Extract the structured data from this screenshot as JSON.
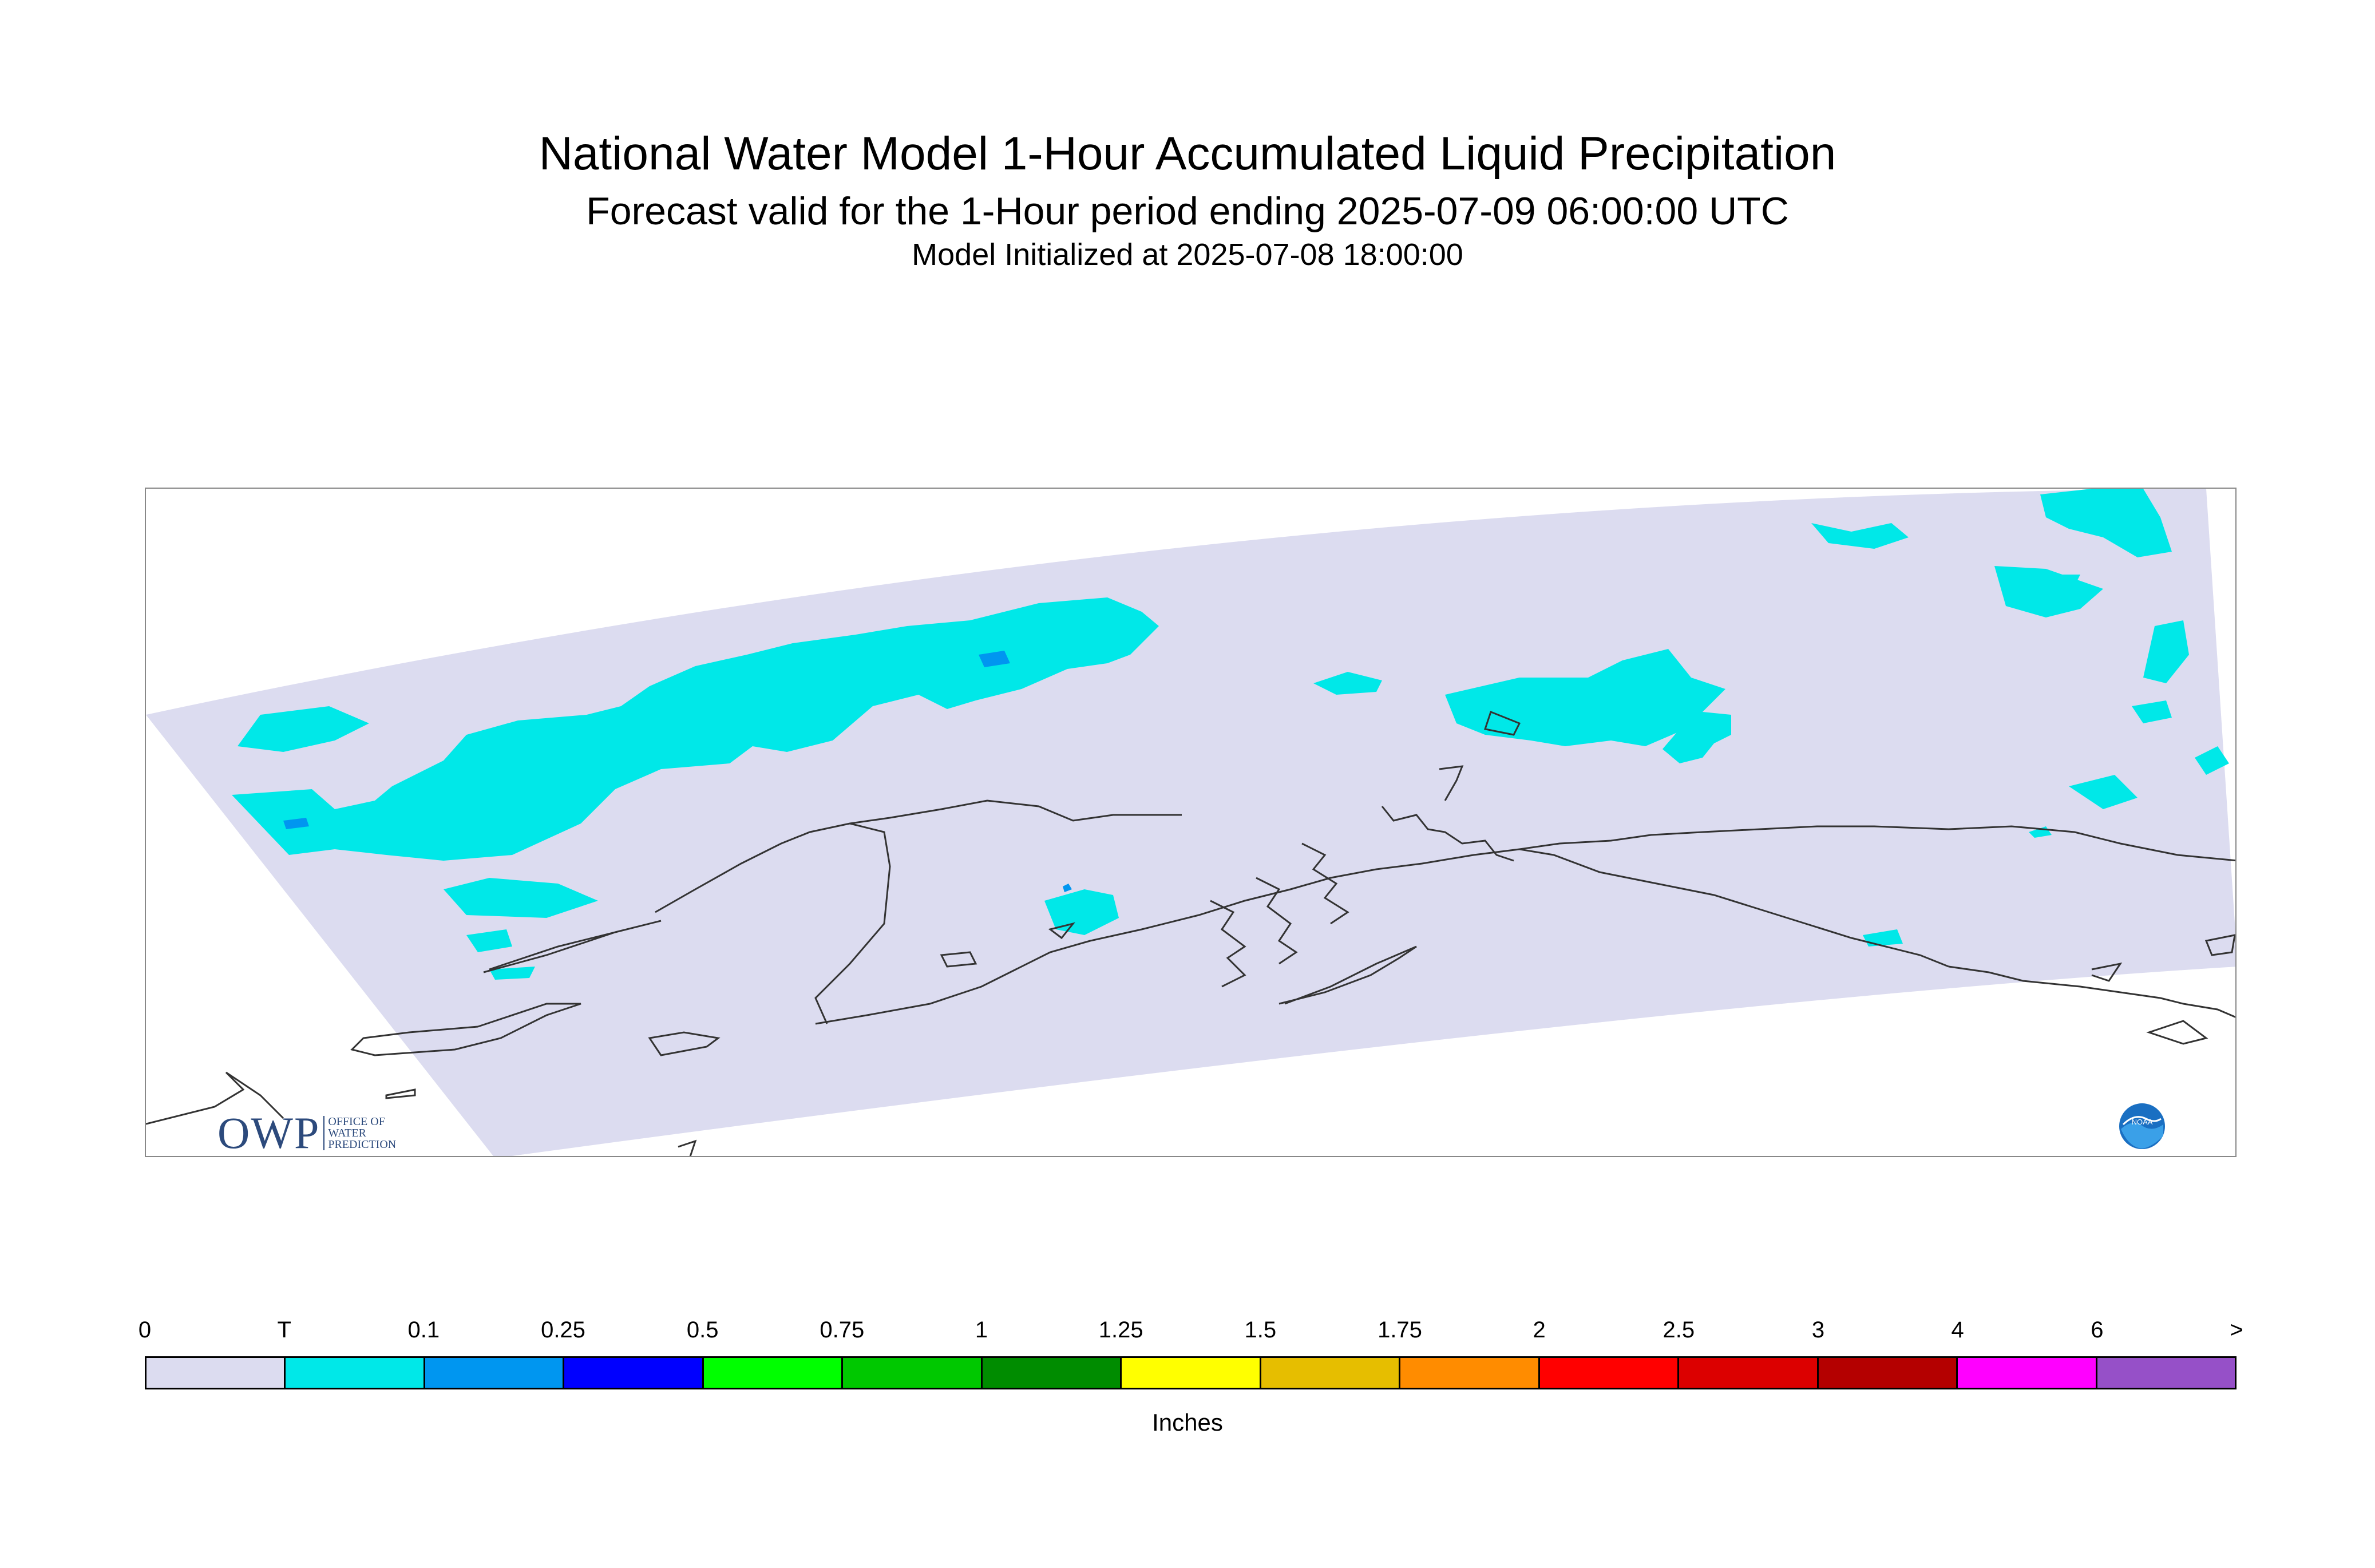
{
  "titles": {
    "main": "National Water Model 1-Hour Accumulated Liquid Precipitation",
    "forecast": "Forecast valid for the 1-Hour period ending 2025-07-09 06:00:00 UTC",
    "init": "Model Initialized at 2025-07-08 18:00:00"
  },
  "legend": {
    "units": "Inches",
    "ticks": [
      "0",
      "T",
      "0.1",
      "0.25",
      "0.5",
      "0.75",
      "1",
      "1.25",
      "1.5",
      "1.75",
      "2",
      "2.5",
      "3",
      "4",
      "6",
      ">"
    ],
    "colors": [
      "#dcdcf0",
      "#00e8e8",
      "#0096f0",
      "#0000ff",
      "#00ff00",
      "#00c800",
      "#008c00",
      "#ffff00",
      "#e6be00",
      "#ff8c00",
      "#ff0000",
      "#dc0000",
      "#b40000",
      "#ff00ff",
      "#9650c8"
    ]
  },
  "logos": {
    "owp_big": "OWP",
    "owp_line1": "OFFICE OF",
    "owp_line2": "WATER",
    "owp_line3": "PREDICTION",
    "noaa": "NOAA"
  },
  "map_colors": {
    "domain": "#dcdcf0",
    "trace": "#00e8e8",
    "light": "#0096f0",
    "coast": "#333333"
  }
}
